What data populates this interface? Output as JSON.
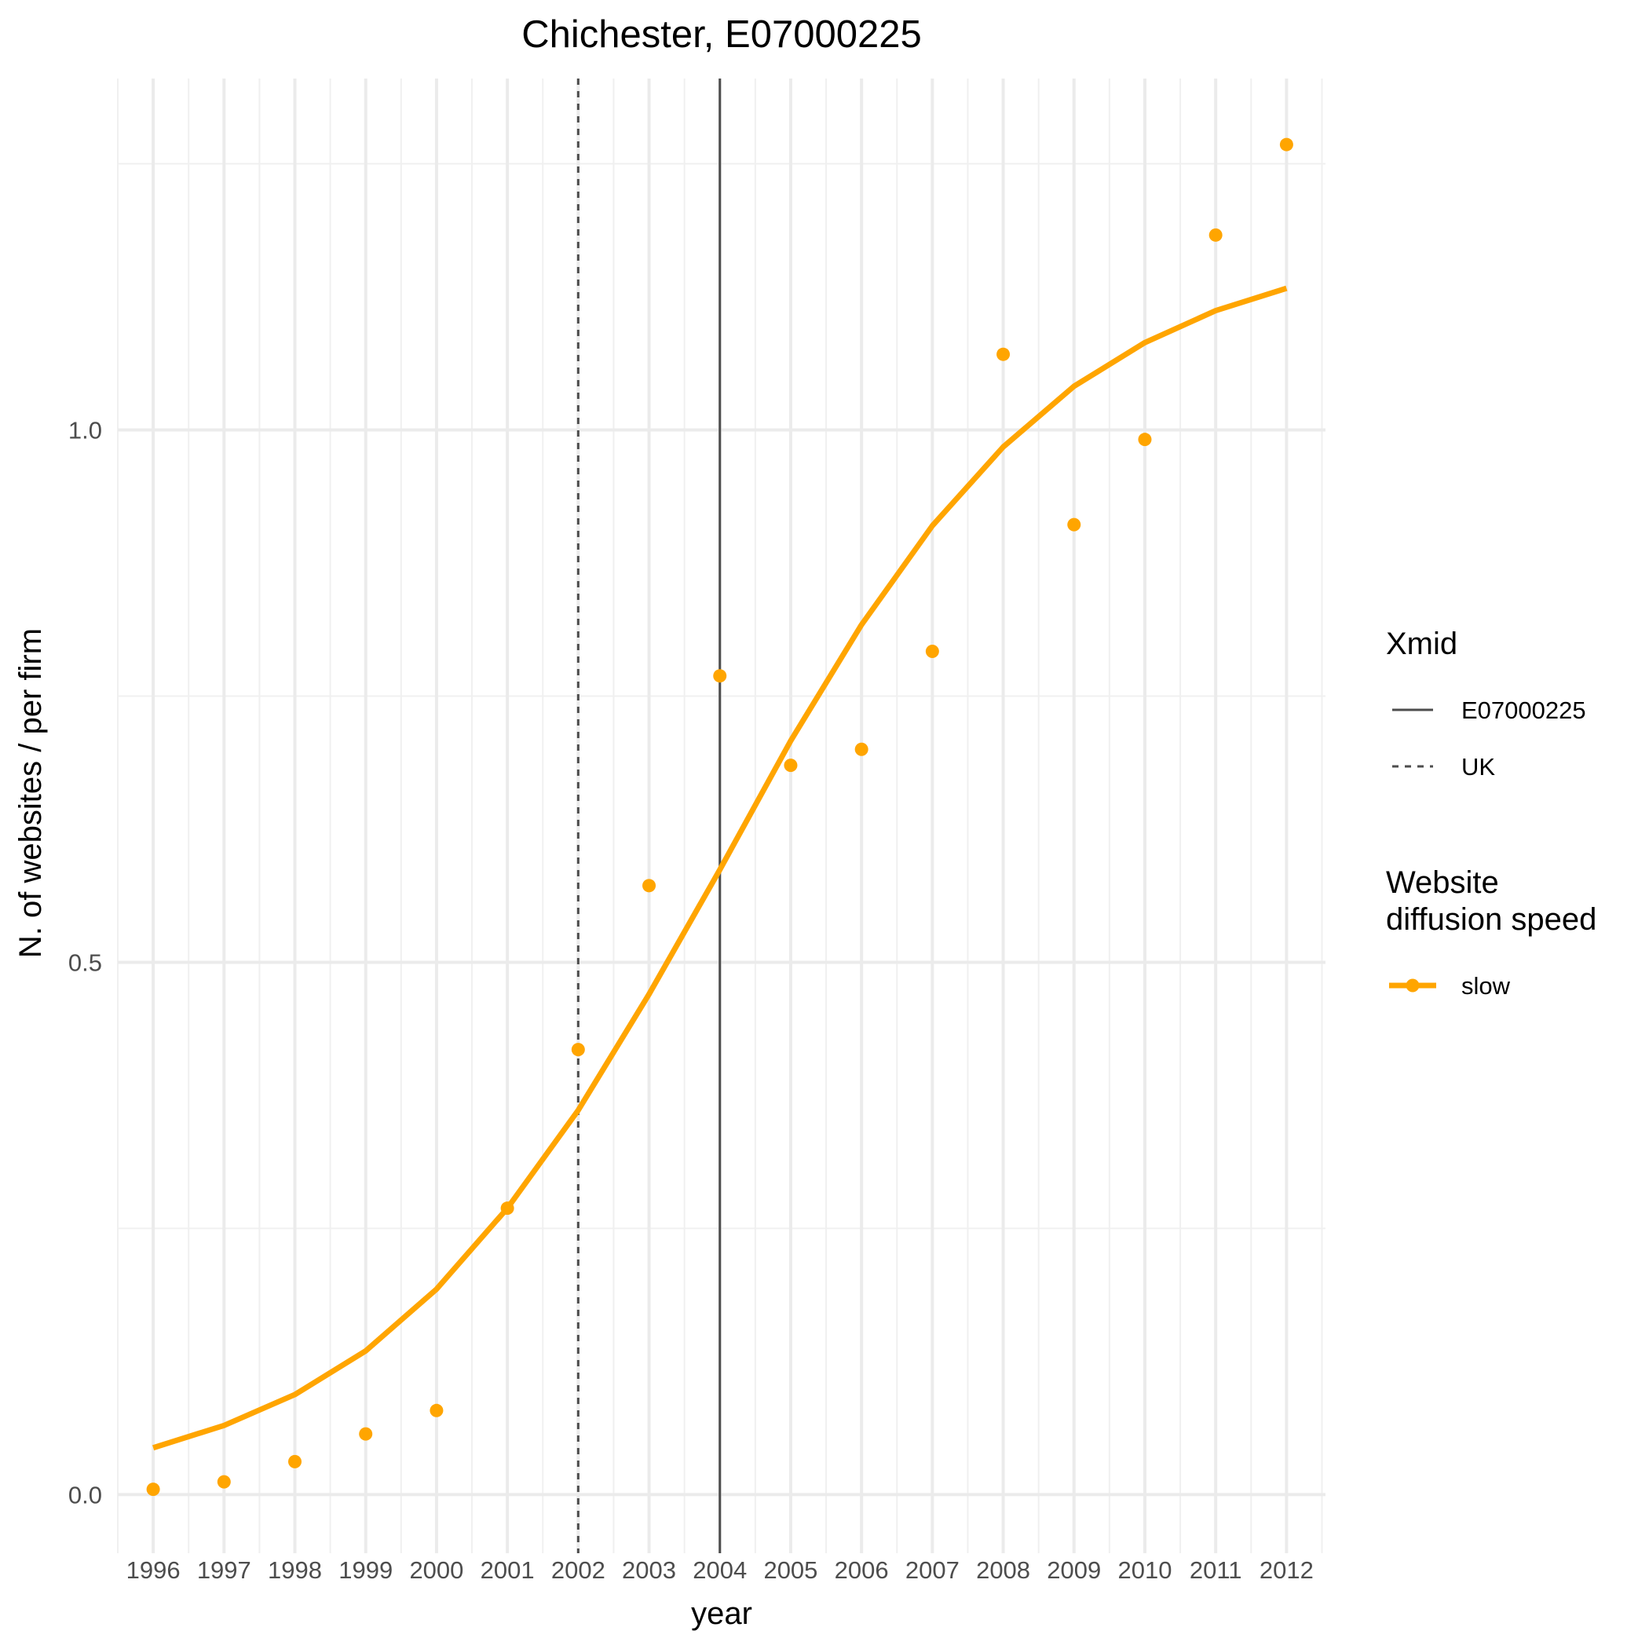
{
  "chart_data": {
    "type": "line",
    "title": "Chichester, E07000225",
    "xlabel": "year",
    "ylabel": "N. of websites / per firm",
    "x": [
      1996,
      1997,
      1998,
      1999,
      2000,
      2001,
      2002,
      2003,
      2004,
      2005,
      2006,
      2007,
      2008,
      2009,
      2010,
      2011,
      2012
    ],
    "x_tick_labels": [
      "1996",
      "1997",
      "1998",
      "1999",
      "2000",
      "2001",
      "2002",
      "2003",
      "2004",
      "2005",
      "2006",
      "2007",
      "2008",
      "2009",
      "2010",
      "2011",
      "2012"
    ],
    "y_ticks": [
      0.0,
      0.5,
      1.0
    ],
    "y_tick_labels": [
      "0.0",
      "0.5",
      "1.0"
    ],
    "xlim": [
      1995.5,
      2012.55
    ],
    "ylim": [
      -0.055,
      1.33
    ],
    "grid": true,
    "legend_position": "right",
    "series": [
      {
        "name": "slow",
        "kind": "fitted-line",
        "color": "#FFA500",
        "values": [
          0.044,
          0.065,
          0.094,
          0.135,
          0.193,
          0.269,
          0.361,
          0.47,
          0.587,
          0.708,
          0.817,
          0.91,
          0.984,
          1.041,
          1.082,
          1.112,
          1.133
        ]
      },
      {
        "name": "slow",
        "kind": "observed-points",
        "color": "#FFA500",
        "values": [
          0.005,
          0.012,
          0.031,
          0.057,
          0.079,
          0.269,
          0.418,
          0.572,
          0.769,
          0.685,
          0.7,
          0.792,
          1.071,
          0.911,
          0.991,
          1.183,
          1.268
        ]
      }
    ],
    "vlines": [
      {
        "name": "E07000225",
        "x": 2004,
        "style": "solid",
        "color": "#4d4d4d"
      },
      {
        "name": "UK",
        "x": 2002,
        "style": "dashed",
        "color": "#4d4d4d"
      }
    ],
    "legend": {
      "groups": [
        {
          "title_lines": [
            "Xmid"
          ],
          "items": [
            {
              "label": "E07000225",
              "kind": "solid-line"
            },
            {
              "label": "UK",
              "kind": "dashed-line"
            }
          ]
        },
        {
          "title_lines": [
            "Website",
            "diffusion speed"
          ],
          "items": [
            {
              "label": "slow",
              "kind": "line-point",
              "color": "#FFA500"
            }
          ]
        }
      ]
    }
  }
}
